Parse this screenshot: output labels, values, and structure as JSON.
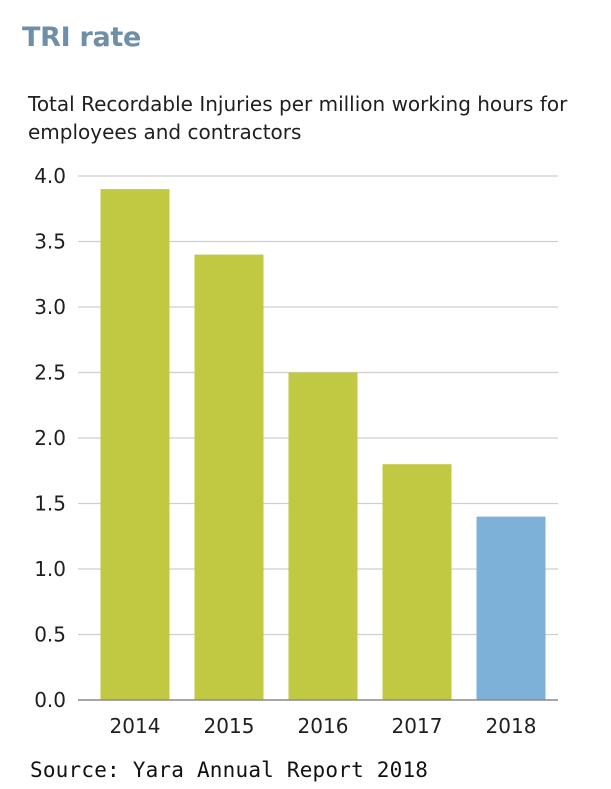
{
  "colors": {
    "bar_default": "#c1c943",
    "bar_highlight": "#7db1d8",
    "title": "#6f8fa9",
    "grid": "#cfcfcf",
    "axis": "#8a8a8a",
    "text": "#1f1f1f"
  },
  "source": "Source: Yara Annual Report 2018",
  "chart_data": {
    "type": "bar",
    "title": "TRI rate",
    "subtitle": "Total Recordable Injuries per million working hours for employees and contractors",
    "categories": [
      "2014",
      "2015",
      "2016",
      "2017",
      "2018"
    ],
    "values": [
      3.9,
      3.4,
      2.5,
      1.8,
      1.4
    ],
    "highlight_category": "2018",
    "ylim": [
      0,
      4.0
    ],
    "yticks": [
      "0.0",
      "0.5",
      "1.0",
      "1.5",
      "2.0",
      "2.5",
      "3.0",
      "3.5",
      "4.0"
    ],
    "grid": true,
    "legend": "none"
  }
}
